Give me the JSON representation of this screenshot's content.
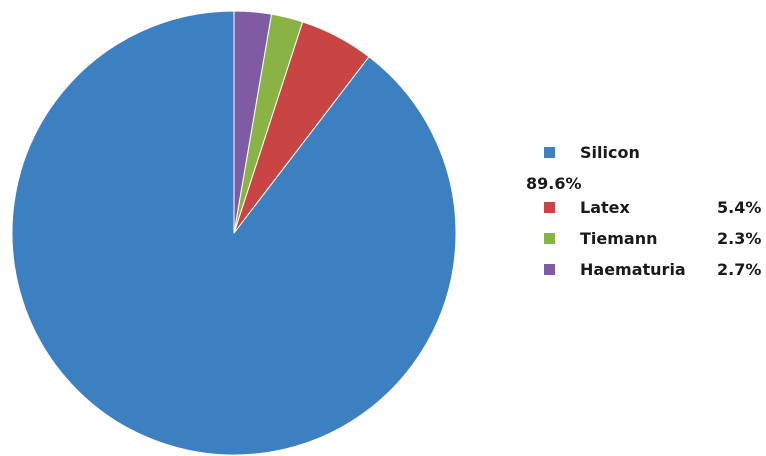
{
  "chart_data": {
    "type": "pie",
    "title": "",
    "start_angle_deg": 90,
    "direction": "counterclockwise",
    "legend_position": "right",
    "slices": [
      {
        "label": "Silicon",
        "value": 89.6,
        "display": "89.6%",
        "color": "#3d80c1"
      },
      {
        "label": "Latex",
        "value": 5.4,
        "display": "5.4%",
        "color": "#c94543"
      },
      {
        "label": "Tiemann",
        "value": 2.3,
        "display": "2.3%",
        "color": "#8ab346"
      },
      {
        "label": "Haematuria",
        "value": 2.7,
        "display": "2.7%",
        "color": "#7f5ba4"
      }
    ]
  }
}
